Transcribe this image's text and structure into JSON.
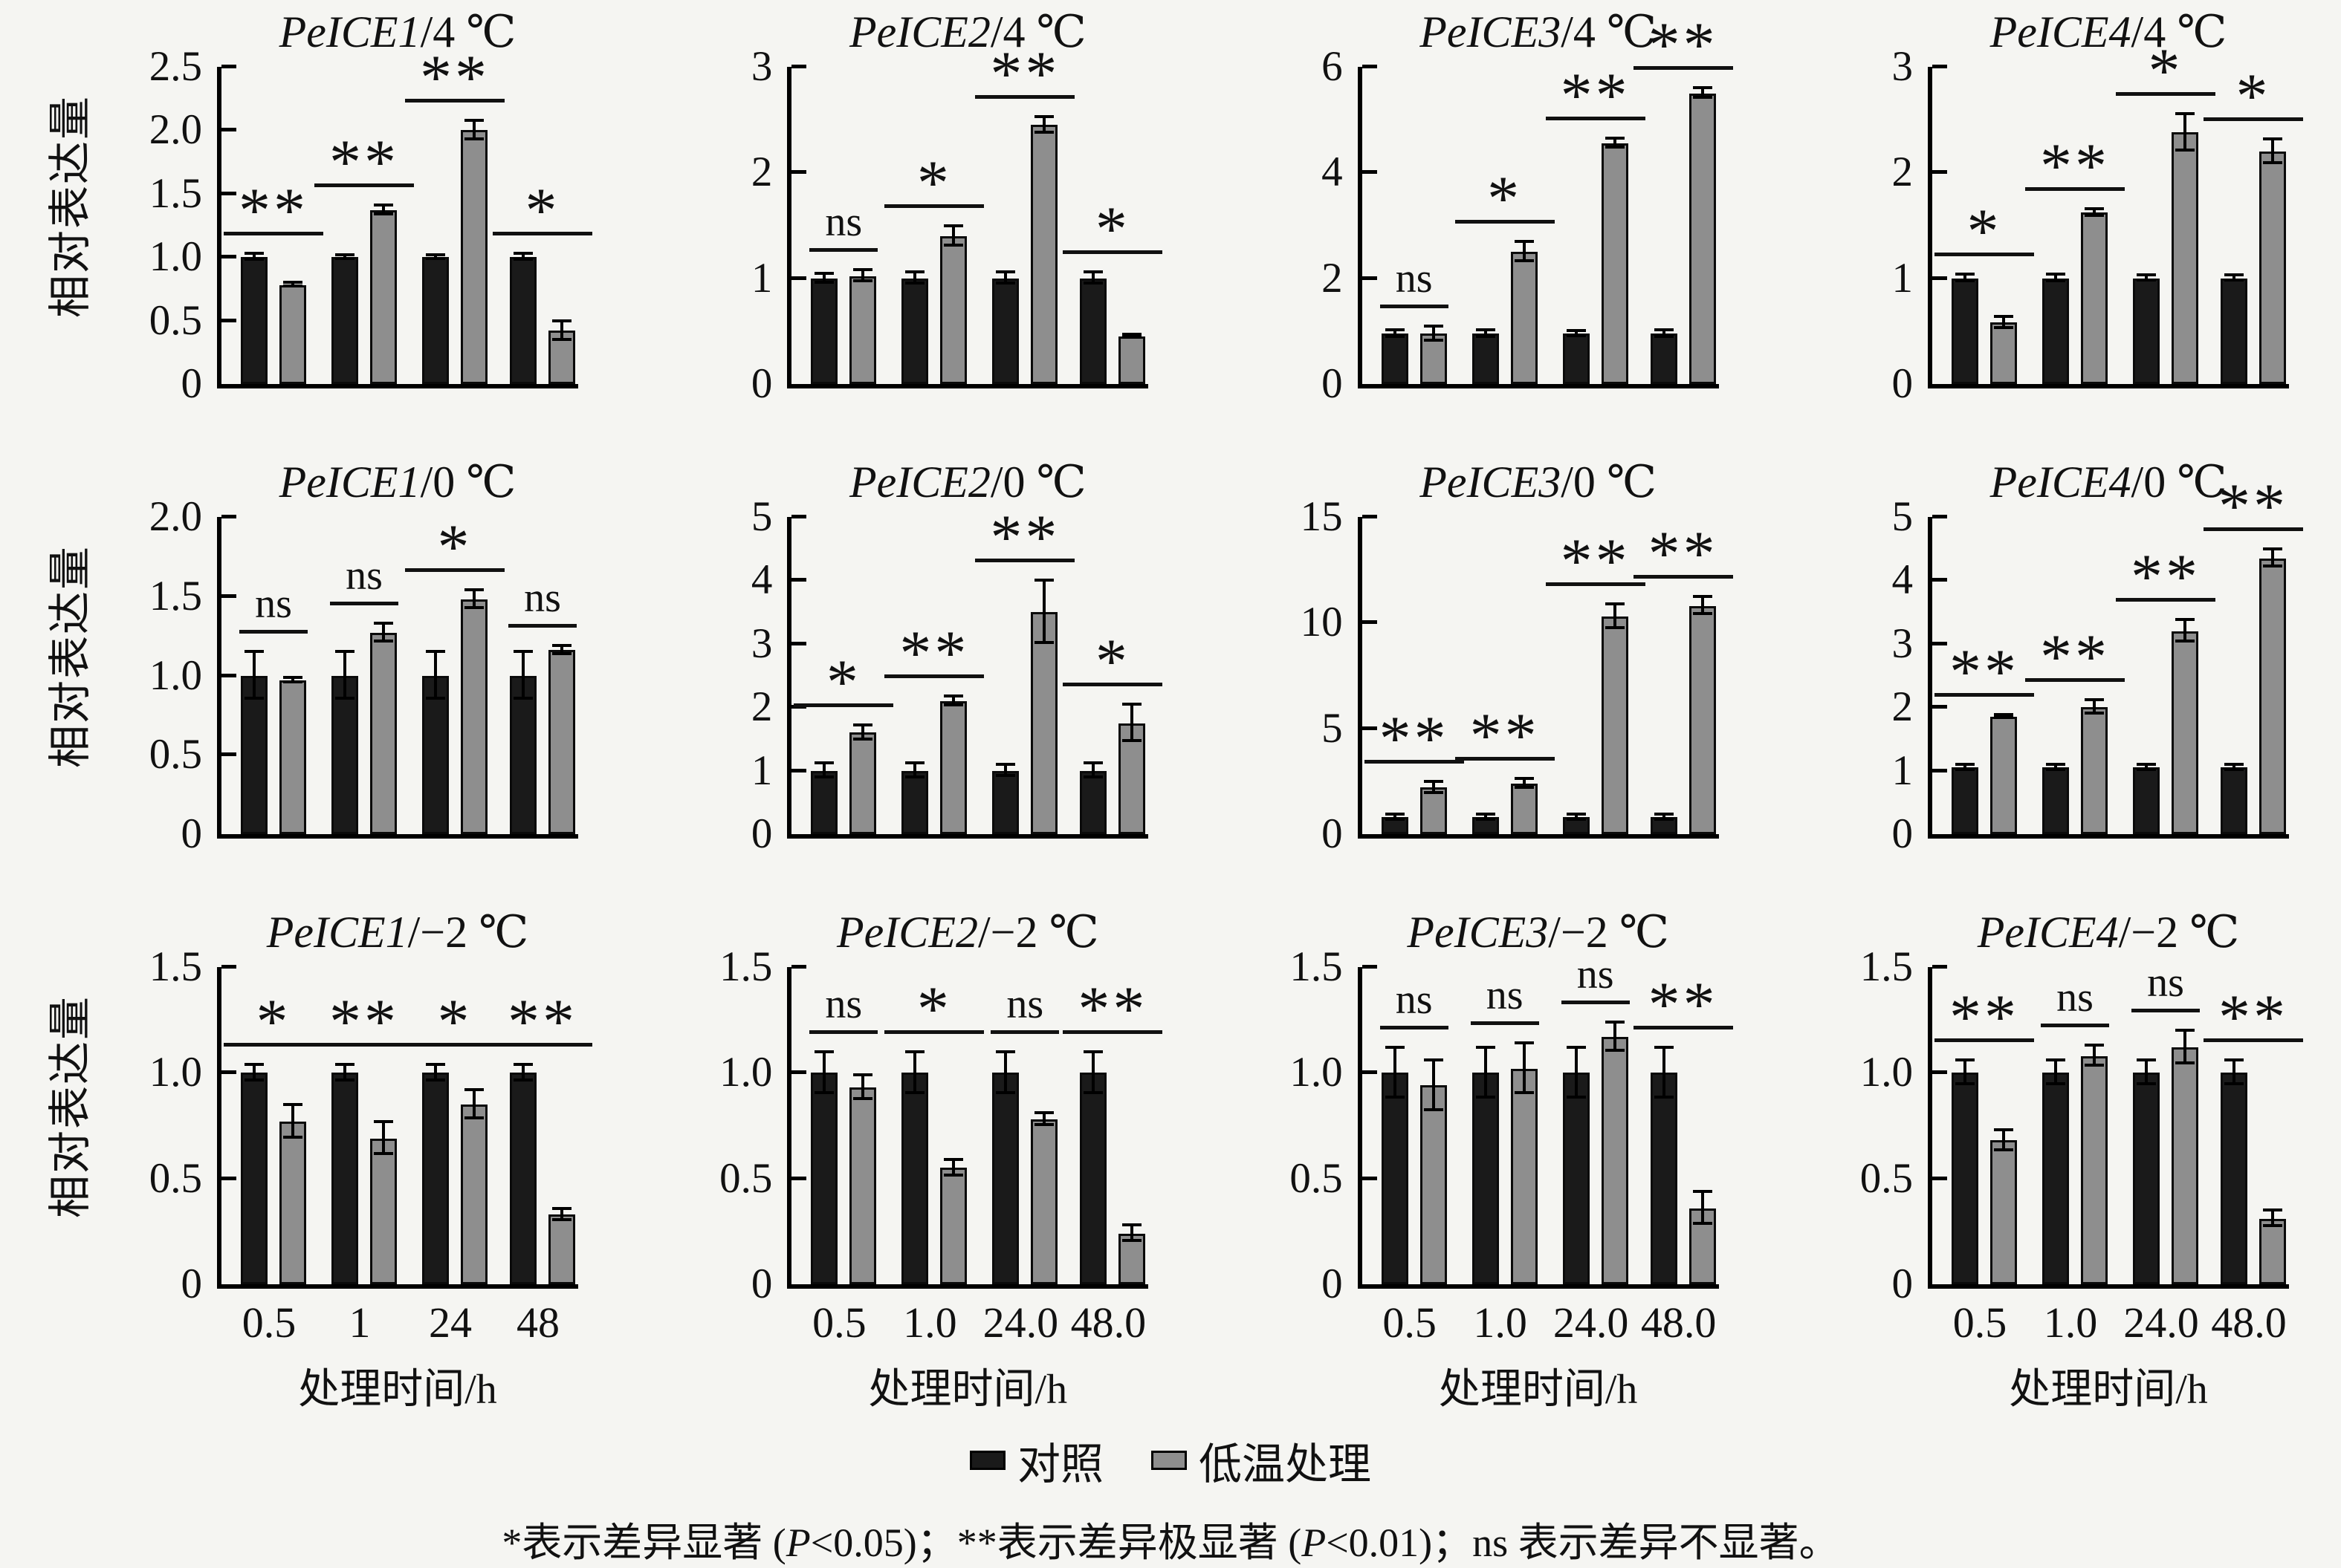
{
  "figure": {
    "ylabel": "相对表达量",
    "xlabel": "处理时间/h",
    "legend": [
      {
        "label": "对照",
        "color": "#1a1a1a"
      },
      {
        "label": "低温处理",
        "color": "#8e8e8e"
      }
    ],
    "footnote_parts": [
      {
        "text": "*表示差异显著 (",
        "italic": false
      },
      {
        "text": "P",
        "italic": true
      },
      {
        "text": "<0.05)；**表示差异极显著 (",
        "italic": false
      },
      {
        "text": "P",
        "italic": true
      },
      {
        "text": "<0.01)；ns 表示差异不显著。",
        "italic": false
      }
    ],
    "colors": {
      "control": "#1a1a1a",
      "treatment": "#8e8e8e",
      "axis": "#000000"
    }
  },
  "chart_data": [
    {
      "type": "bar",
      "gene": "PeICE1",
      "condition": "/4 ℃",
      "title": "PeICE1/4 ℃",
      "ylim": [
        0,
        2.5
      ],
      "yticks": [
        "0",
        "0.5",
        "1.0",
        "1.5",
        "2.0",
        "2.5"
      ],
      "categories": [
        "0.5",
        "1",
        "24",
        "48"
      ],
      "show_xticklabels": false,
      "series": [
        {
          "name": "对照",
          "values": [
            1.0,
            1.0,
            1.0,
            1.0
          ],
          "errors": [
            0.03,
            0.02,
            0.02,
            0.03
          ]
        },
        {
          "name": "低温处理",
          "values": [
            0.78,
            1.37,
            2.0,
            0.42
          ],
          "errors": [
            0.02,
            0.04,
            0.08,
            0.08
          ]
        }
      ],
      "significance": [
        "**",
        "**",
        "**",
        "*"
      ]
    },
    {
      "type": "bar",
      "gene": "PeICE2",
      "condition": "/4 ℃",
      "title": "PeICE2/4 ℃",
      "ylim": [
        0,
        3
      ],
      "yticks": [
        "0",
        "1",
        "2",
        "3"
      ],
      "categories": [
        "0.5",
        "1.0",
        "24.0",
        "48.0"
      ],
      "show_xticklabels": false,
      "series": [
        {
          "name": "对照",
          "values": [
            1.0,
            1.0,
            1.0,
            1.0
          ],
          "errors": [
            0.05,
            0.06,
            0.06,
            0.06
          ]
        },
        {
          "name": "低温处理",
          "values": [
            1.02,
            1.4,
            2.45,
            0.45
          ],
          "errors": [
            0.06,
            0.1,
            0.08,
            0.02
          ]
        }
      ],
      "significance": [
        "ns",
        "*",
        "**",
        "*"
      ]
    },
    {
      "type": "bar",
      "gene": "PeICE3",
      "condition": "/4 ℃",
      "title": "PeICE3/4 ℃",
      "ylim": [
        0,
        6
      ],
      "yticks": [
        "0",
        "2",
        "4",
        "6"
      ],
      "categories": [
        "0.5",
        "1.0",
        "24.0",
        "48.0"
      ],
      "show_xticklabels": false,
      "series": [
        {
          "name": "对照",
          "values": [
            0.95,
            0.95,
            0.95,
            0.95
          ],
          "errors": [
            0.08,
            0.08,
            0.06,
            0.08
          ]
        },
        {
          "name": "低温处理",
          "values": [
            0.95,
            2.5,
            4.55,
            5.5
          ],
          "errors": [
            0.15,
            0.2,
            0.1,
            0.1
          ]
        }
      ],
      "significance": [
        "ns",
        "*",
        "**",
        "**"
      ]
    },
    {
      "type": "bar",
      "gene": "PeICE4",
      "condition": "/4 ℃",
      "title": "PeICE4/4 ℃",
      "ylim": [
        0,
        3
      ],
      "yticks": [
        "0",
        "1",
        "2",
        "3"
      ],
      "categories": [
        "0.5",
        "1.0",
        "24.0",
        "48.0"
      ],
      "show_xticklabels": false,
      "series": [
        {
          "name": "对照",
          "values": [
            1.0,
            1.0,
            1.0,
            1.0
          ],
          "errors": [
            0.04,
            0.04,
            0.03,
            0.03
          ]
        },
        {
          "name": "低温处理",
          "values": [
            0.58,
            1.62,
            2.38,
            2.2
          ],
          "errors": [
            0.06,
            0.04,
            0.18,
            0.12
          ]
        }
      ],
      "significance": [
        "*",
        "**",
        "*",
        "*"
      ]
    },
    {
      "type": "bar",
      "gene": "PeICE1",
      "condition": "/0 ℃",
      "title": "PeICE1/0 ℃",
      "ylim": [
        0,
        2.0
      ],
      "yticks": [
        "0",
        "0.5",
        "1.0",
        "1.5",
        "2.0"
      ],
      "categories": [
        "0.5",
        "1",
        "24",
        "48"
      ],
      "show_xticklabels": false,
      "series": [
        {
          "name": "对照",
          "values": [
            1.0,
            1.0,
            1.0,
            1.0
          ],
          "errors": [
            0.15,
            0.15,
            0.15,
            0.15
          ]
        },
        {
          "name": "低温处理",
          "values": [
            0.97,
            1.27,
            1.48,
            1.16
          ],
          "errors": [
            0.02,
            0.06,
            0.06,
            0.03
          ]
        }
      ],
      "significance": [
        "ns",
        "ns",
        "*",
        "ns"
      ]
    },
    {
      "type": "bar",
      "gene": "PeICE2",
      "condition": "/0 ℃",
      "title": "PeICE2/0 ℃",
      "ylim": [
        0,
        5
      ],
      "yticks": [
        "0",
        "1",
        "2",
        "3",
        "4",
        "5"
      ],
      "categories": [
        "0.5",
        "1.0",
        "24.0",
        "48.0"
      ],
      "show_xticklabels": false,
      "series": [
        {
          "name": "对照",
          "values": [
            1.0,
            1.0,
            1.0,
            1.0
          ],
          "errors": [
            0.12,
            0.12,
            0.1,
            0.12
          ]
        },
        {
          "name": "低温处理",
          "values": [
            1.6,
            2.1,
            3.5,
            1.75
          ],
          "errors": [
            0.12,
            0.08,
            0.5,
            0.3
          ]
        }
      ],
      "significance": [
        "*",
        "**",
        "**",
        "*"
      ]
    },
    {
      "type": "bar",
      "gene": "PeICE3",
      "condition": "/0 ℃",
      "title": "PeICE3/0 ℃",
      "ylim": [
        0,
        15
      ],
      "yticks": [
        "0",
        "5",
        "10",
        "15"
      ],
      "categories": [
        "0.5",
        "1.0",
        "24.0",
        "48.0"
      ],
      "show_xticklabels": false,
      "series": [
        {
          "name": "对照",
          "values": [
            0.8,
            0.8,
            0.8,
            0.8
          ],
          "errors": [
            0.15,
            0.15,
            0.15,
            0.15
          ]
        },
        {
          "name": "低温处理",
          "values": [
            2.2,
            2.4,
            10.3,
            10.8
          ],
          "errors": [
            0.3,
            0.25,
            0.6,
            0.45
          ]
        }
      ],
      "significance": [
        "**",
        "**",
        "**",
        "**"
      ]
    },
    {
      "type": "bar",
      "gene": "PeICE4",
      "condition": "/0 ℃",
      "title": "PeICE4/0 ℃",
      "ylim": [
        0,
        5
      ],
      "yticks": [
        "0",
        "1",
        "2",
        "3",
        "4",
        "5"
      ],
      "categories": [
        "0.5",
        "1.0",
        "24.0",
        "48.0"
      ],
      "show_xticklabels": false,
      "series": [
        {
          "name": "对照",
          "values": [
            1.05,
            1.05,
            1.05,
            1.05
          ],
          "errors": [
            0.05,
            0.05,
            0.05,
            0.05
          ]
        },
        {
          "name": "低温处理",
          "values": [
            1.85,
            2.0,
            3.2,
            4.35
          ],
          "errors": [
            0.04,
            0.12,
            0.18,
            0.15
          ]
        }
      ],
      "significance": [
        "**",
        "**",
        "**",
        "**"
      ]
    },
    {
      "type": "bar",
      "gene": "PeICE1",
      "condition": "/−2 ℃",
      "title": "PeICE1/−2 ℃",
      "ylim": [
        0,
        1.5
      ],
      "yticks": [
        "0",
        "0.5",
        "1.0",
        "1.5"
      ],
      "categories": [
        "0.5",
        "1",
        "24",
        "48"
      ],
      "show_xticklabels": true,
      "series": [
        {
          "name": "对照",
          "values": [
            1.0,
            1.0,
            1.0,
            1.0
          ],
          "errors": [
            0.04,
            0.04,
            0.04,
            0.04
          ]
        },
        {
          "name": "低温处理",
          "values": [
            0.77,
            0.69,
            0.85,
            0.33
          ],
          "errors": [
            0.08,
            0.08,
            0.07,
            0.03
          ]
        }
      ],
      "significance": [
        "*",
        "**",
        "*",
        "**"
      ]
    },
    {
      "type": "bar",
      "gene": "PeICE2",
      "condition": "/−2 ℃",
      "title": "PeICE2/−2 ℃",
      "ylim": [
        0,
        1.5
      ],
      "yticks": [
        "0",
        "0.5",
        "1.0",
        "1.5"
      ],
      "categories": [
        "0.5",
        "1.0",
        "24.0",
        "48.0"
      ],
      "show_xticklabels": true,
      "series": [
        {
          "name": "对照",
          "values": [
            1.0,
            1.0,
            1.0,
            1.0
          ],
          "errors": [
            0.1,
            0.1,
            0.1,
            0.1
          ]
        },
        {
          "name": "低温处理",
          "values": [
            0.93,
            0.55,
            0.78,
            0.24
          ],
          "errors": [
            0.06,
            0.04,
            0.03,
            0.04
          ]
        }
      ],
      "significance": [
        "ns",
        "*",
        "ns",
        "**"
      ]
    },
    {
      "type": "bar",
      "gene": "PeICE3",
      "condition": "/−2 ℃",
      "title": "PeICE3/−2 ℃",
      "ylim": [
        0,
        1.5
      ],
      "yticks": [
        "0",
        "0.5",
        "1.0",
        "1.5"
      ],
      "categories": [
        "0.5",
        "1.0",
        "24.0",
        "48.0"
      ],
      "show_xticklabels": true,
      "series": [
        {
          "name": "对照",
          "values": [
            1.0,
            1.0,
            1.0,
            1.0
          ],
          "errors": [
            0.12,
            0.12,
            0.12,
            0.12
          ]
        },
        {
          "name": "低温处理",
          "values": [
            0.94,
            1.02,
            1.17,
            0.36
          ],
          "errors": [
            0.12,
            0.12,
            0.07,
            0.08
          ]
        }
      ],
      "significance": [
        "ns",
        "ns",
        "ns",
        "**"
      ]
    },
    {
      "type": "bar",
      "gene": "PeICE4",
      "condition": "/−2 ℃",
      "title": "PeICE4/−2 ℃",
      "ylim": [
        0,
        1.5
      ],
      "yticks": [
        "0",
        "0.5",
        "1.0",
        "1.5"
      ],
      "categories": [
        "0.5",
        "1.0",
        "24.0",
        "48.0"
      ],
      "show_xticklabels": true,
      "series": [
        {
          "name": "对照",
          "values": [
            1.0,
            1.0,
            1.0,
            1.0
          ],
          "errors": [
            0.06,
            0.06,
            0.06,
            0.06
          ]
        },
        {
          "name": "低温处理",
          "values": [
            0.68,
            1.08,
            1.12,
            0.31
          ],
          "errors": [
            0.05,
            0.05,
            0.08,
            0.04
          ]
        }
      ],
      "significance": [
        "**",
        "ns",
        "ns",
        "**"
      ]
    }
  ]
}
